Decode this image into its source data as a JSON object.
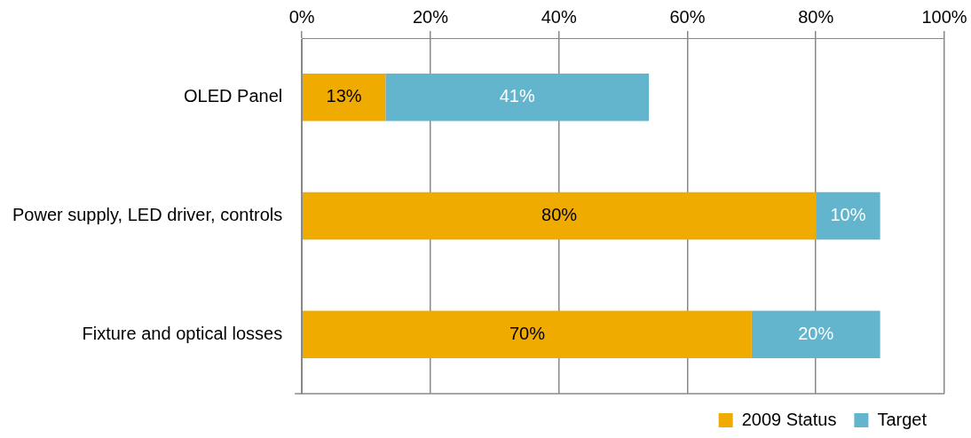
{
  "chart_data": {
    "type": "bar",
    "orientation": "horizontal",
    "stacked": true,
    "categories": [
      "OLED Panel",
      "Power supply, LED driver, controls",
      "Fixture and optical losses"
    ],
    "series": [
      {
        "name": "2009 Status",
        "color": "#f0ab00",
        "values": [
          13,
          80,
          70
        ],
        "value_labels": [
          "13%",
          "80%",
          "70%"
        ]
      },
      {
        "name": "Target",
        "color": "#62b5cc",
        "values": [
          41,
          10,
          20
        ],
        "value_labels": [
          "41%",
          "10%",
          "20%"
        ]
      }
    ],
    "xlim": [
      0,
      100
    ],
    "xticks": [
      {
        "value": 0,
        "label": "0%"
      },
      {
        "value": 20,
        "label": "20%"
      },
      {
        "value": 40,
        "label": "40%"
      },
      {
        "value": 60,
        "label": "60%"
      },
      {
        "value": 80,
        "label": "80%"
      },
      {
        "value": 100,
        "label": "100%"
      }
    ],
    "grid": "x",
    "legend": "bottom"
  }
}
